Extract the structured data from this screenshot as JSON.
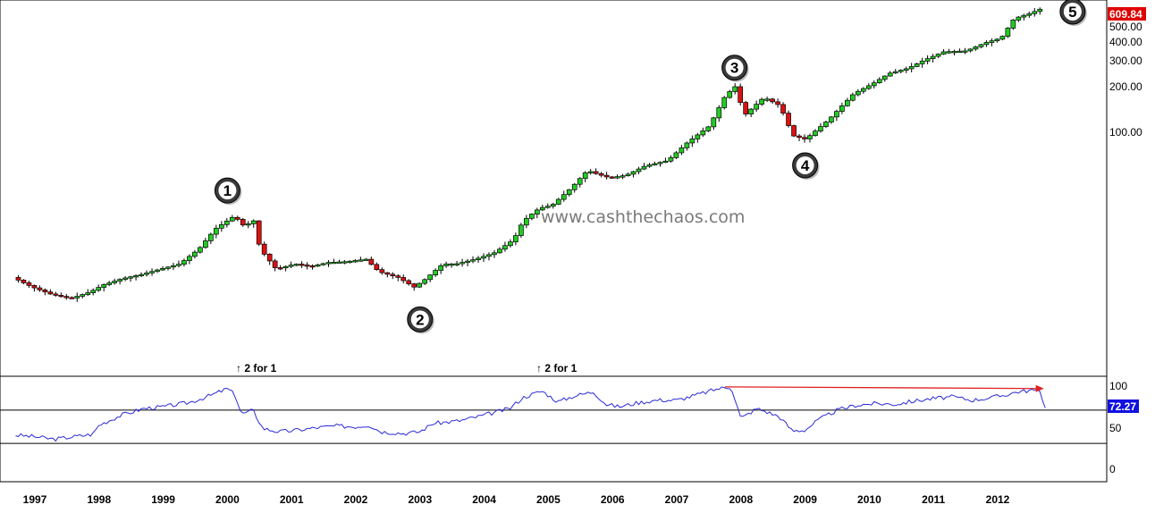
{
  "chart_data": {
    "type": "candlestick",
    "title": "",
    "watermark": "www.cashthechaos.com",
    "price_scale": "log",
    "price_axis": {
      "ticks": [
        "100.00",
        "200.00",
        "300.00",
        "400.00",
        "500.00"
      ],
      "last_value_label": "609.84",
      "last_value_color": "#e00000"
    },
    "rsi_axis": {
      "ticks": [
        "0",
        "50",
        "100"
      ],
      "last_value_label": "72.27",
      "last_value_color": "#1010e0",
      "upper_line": 70,
      "lower_line": 30
    },
    "x_labels": [
      "1997",
      "1998",
      "1999",
      "2000",
      "2001",
      "2002",
      "2003",
      "2004",
      "2005",
      "2006",
      "2007",
      "2008",
      "2009",
      "2010",
      "2011",
      "2012"
    ],
    "wave_markers": [
      {
        "label": "1",
        "date": 2000.0,
        "price": 29
      },
      {
        "label": "2",
        "date": 2003.0,
        "price": 8.5
      },
      {
        "label": "3",
        "date": 2007.9,
        "price": 185
      },
      {
        "label": "4",
        "date": 2009.0,
        "price": 85
      },
      {
        "label": "5",
        "date": 2012.75,
        "price": 610
      }
    ],
    "split_annotations": [
      {
        "text": "↑ 2 for 1",
        "date": 2000.25
      },
      {
        "text": "↑ 2 for 1",
        "date": 2004.95
      }
    ],
    "price_keypoints": [
      [
        1996.7,
        11.0
      ],
      [
        1997.0,
        9.5
      ],
      [
        1997.3,
        8.5
      ],
      [
        1997.6,
        8.0
      ],
      [
        1997.9,
        8.8
      ],
      [
        1998.1,
        9.8
      ],
      [
        1998.4,
        10.8
      ],
      [
        1998.7,
        11.5
      ],
      [
        1999.0,
        12.5
      ],
      [
        1999.3,
        13.5
      ],
      [
        1999.6,
        17.0
      ],
      [
        1999.85,
        23.0
      ],
      [
        2000.15,
        28.0
      ],
      [
        2000.3,
        24.0
      ],
      [
        2000.45,
        26.0
      ],
      [
        2000.55,
        17.0
      ],
      [
        2000.8,
        12.5
      ],
      [
        2001.1,
        13.5
      ],
      [
        2001.35,
        13.0
      ],
      [
        2001.6,
        13.8
      ],
      [
        2001.9,
        14.0
      ],
      [
        2002.2,
        14.5
      ],
      [
        2002.4,
        12.0
      ],
      [
        2002.7,
        11.0
      ],
      [
        2002.95,
        9.5
      ],
      [
        2003.1,
        10.5
      ],
      [
        2003.4,
        13.5
      ],
      [
        2003.6,
        13.5
      ],
      [
        2003.9,
        14.5
      ],
      [
        2004.2,
        16.0
      ],
      [
        2004.5,
        19.5
      ],
      [
        2004.65,
        26.0
      ],
      [
        2004.9,
        31.5
      ],
      [
        2005.1,
        33.0
      ],
      [
        2005.4,
        43.0
      ],
      [
        2005.65,
        56.0
      ],
      [
        2005.8,
        53.0
      ],
      [
        2006.0,
        50.0
      ],
      [
        2006.25,
        52.0
      ],
      [
        2006.55,
        60.0
      ],
      [
        2006.9,
        65.0
      ],
      [
        2007.2,
        85.0
      ],
      [
        2007.55,
        110.0
      ],
      [
        2007.8,
        175.0
      ],
      [
        2007.95,
        200.0
      ],
      [
        2008.1,
        130.0
      ],
      [
        2008.4,
        170.0
      ],
      [
        2008.65,
        150.0
      ],
      [
        2008.85,
        95.0
      ],
      [
        2009.05,
        90.0
      ],
      [
        2009.4,
        120.0
      ],
      [
        2009.8,
        180.0
      ],
      [
        2010.1,
        210.0
      ],
      [
        2010.35,
        245.0
      ],
      [
        2010.65,
        265.0
      ],
      [
        2010.9,
        300.0
      ],
      [
        2011.2,
        340.0
      ],
      [
        2011.55,
        345.0
      ],
      [
        2011.85,
        390.0
      ],
      [
        2012.1,
        420.0
      ],
      [
        2012.3,
        565.0
      ],
      [
        2012.55,
        610.0
      ],
      [
        2012.7,
        650.0
      ],
      [
        2012.78,
        609.84
      ]
    ],
    "rsi_keypoints": [
      [
        1996.7,
        40
      ],
      [
        1997.0,
        38
      ],
      [
        1997.3,
        35
      ],
      [
        1997.6,
        38
      ],
      [
        1997.9,
        41
      ],
      [
        1998.0,
        52
      ],
      [
        1998.35,
        64
      ],
      [
        1998.7,
        72
      ],
      [
        1999.0,
        74
      ],
      [
        1999.4,
        79
      ],
      [
        1999.75,
        88
      ],
      [
        2000.0,
        96
      ],
      [
        2000.12,
        88
      ],
      [
        2000.22,
        65
      ],
      [
        2000.4,
        70
      ],
      [
        2000.55,
        48
      ],
      [
        2000.8,
        44
      ],
      [
        2001.1,
        46
      ],
      [
        2001.4,
        49
      ],
      [
        2001.7,
        51
      ],
      [
        2002.0,
        50
      ],
      [
        2002.2,
        52
      ],
      [
        2002.4,
        44
      ],
      [
        2002.75,
        42
      ],
      [
        2003.0,
        44
      ],
      [
        2003.2,
        54
      ],
      [
        2003.6,
        57
      ],
      [
        2003.9,
        62
      ],
      [
        2004.1,
        66
      ],
      [
        2004.4,
        72
      ],
      [
        2004.6,
        85
      ],
      [
        2004.9,
        93
      ],
      [
        2005.15,
        80
      ],
      [
        2005.4,
        87
      ],
      [
        2005.7,
        92
      ],
      [
        2005.9,
        77
      ],
      [
        2006.1,
        74
      ],
      [
        2006.4,
        79
      ],
      [
        2006.7,
        82
      ],
      [
        2007.0,
        82
      ],
      [
        2007.3,
        88
      ],
      [
        2007.65,
        96
      ],
      [
        2007.85,
        98
      ],
      [
        2008.0,
        60
      ],
      [
        2008.25,
        72
      ],
      [
        2008.4,
        68
      ],
      [
        2008.6,
        62
      ],
      [
        2008.8,
        45
      ],
      [
        2009.0,
        46
      ],
      [
        2009.2,
        58
      ],
      [
        2009.5,
        70
      ],
      [
        2009.8,
        76
      ],
      [
        2010.1,
        78
      ],
      [
        2010.4,
        77
      ],
      [
        2010.7,
        81
      ],
      [
        2011.0,
        84
      ],
      [
        2011.3,
        86
      ],
      [
        2011.6,
        82
      ],
      [
        2011.9,
        85
      ],
      [
        2012.1,
        88
      ],
      [
        2012.3,
        92
      ],
      [
        2012.55,
        94
      ],
      [
        2012.66,
        92
      ],
      [
        2012.75,
        72.27
      ]
    ],
    "trend_arrow": {
      "from": [
        2007.75,
        98
      ],
      "to": [
        2012.72,
        96
      ],
      "color": "#e02020"
    },
    "up_color": "#22cc22",
    "down_color": "#dd1111",
    "rsi_color": "#2a2ad8"
  }
}
